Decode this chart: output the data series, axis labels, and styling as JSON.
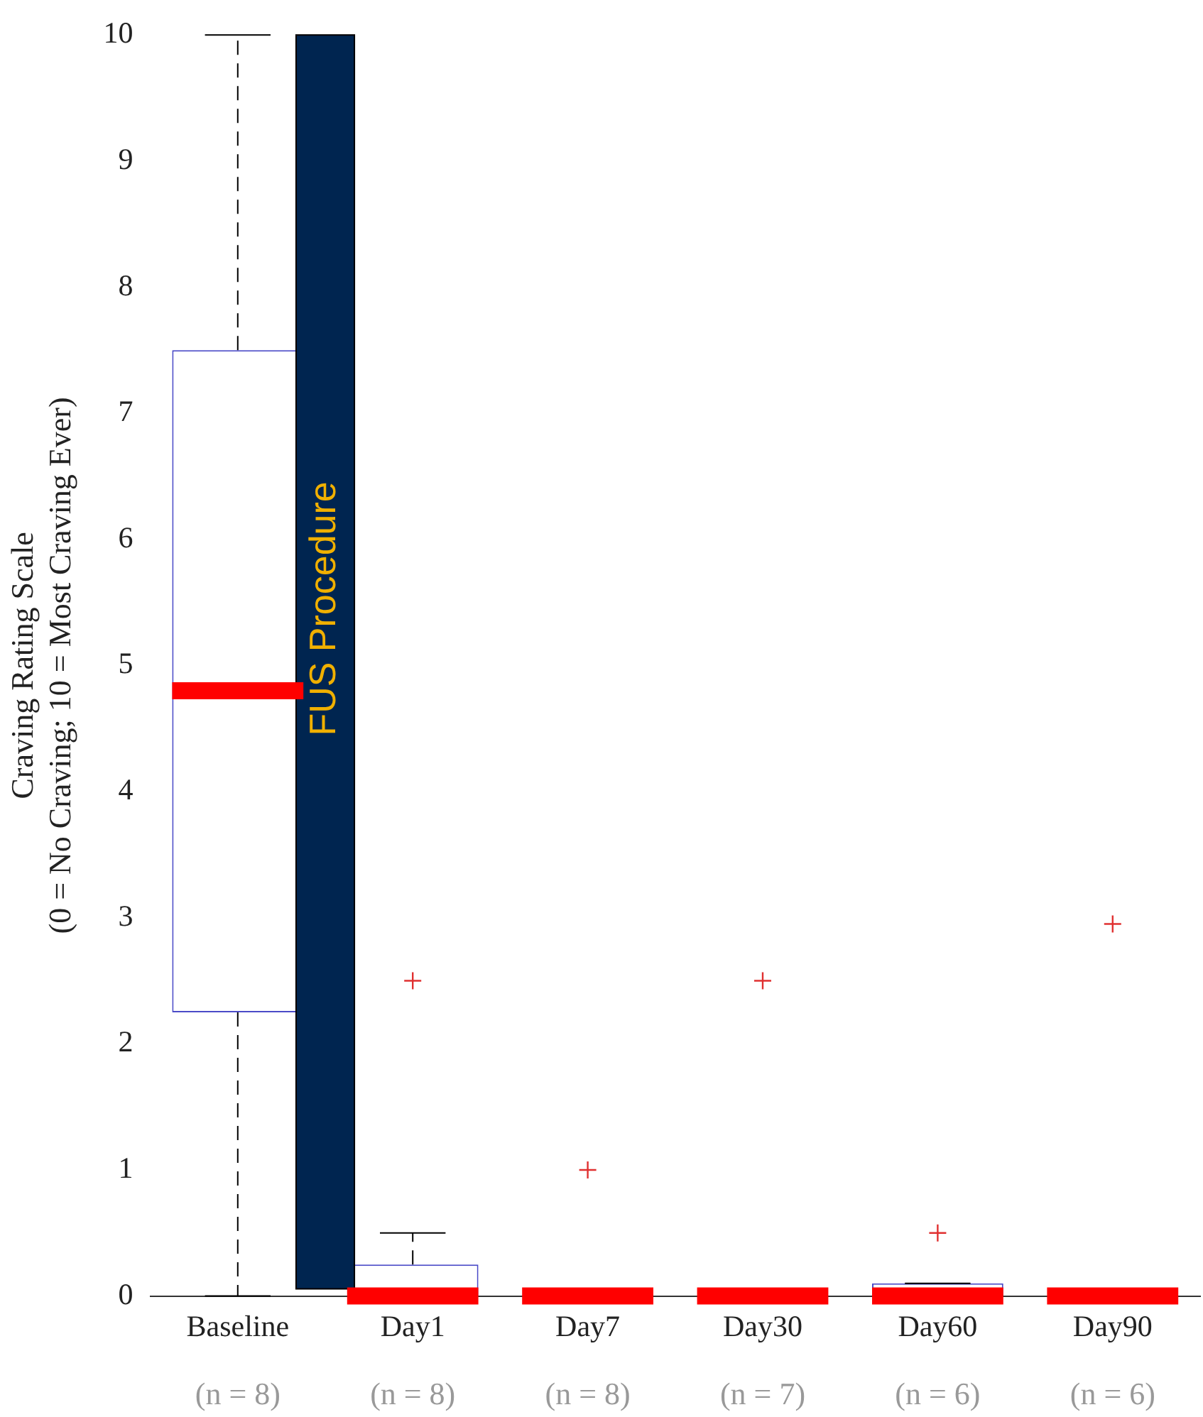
{
  "chart_data": {
    "type": "box",
    "ylabel": "Craving Rating Scale\n(0 = No Craving; 10 = Most Craving Ever)",
    "categories": [
      "Baseline",
      "Day1",
      "Day7",
      "Day30",
      "Day60",
      "Day90"
    ],
    "boxes": [
      {
        "low": 0,
        "q1": 2.25,
        "median": 4.8,
        "q3": 7.5,
        "high": 10
      },
      {
        "low": 0,
        "q1": 0,
        "median": 0,
        "q3": 0.25,
        "high": 0.5,
        "outliers": [
          2.5
        ]
      },
      {
        "low": 0,
        "q1": 0,
        "median": 0,
        "q3": 0,
        "high": 0,
        "outliers": [
          1
        ]
      },
      {
        "low": 0,
        "q1": 0,
        "median": 0,
        "q3": 0,
        "high": 0,
        "outliers": [
          2.5
        ]
      },
      {
        "low": 0,
        "q1": 0,
        "median": 0,
        "q3": 0.1,
        "high": 0.1,
        "outliers": [
          0.5
        ]
      },
      {
        "low": 0,
        "q1": 0,
        "median": 0,
        "q3": 0,
        "high": 0,
        "outliers": [
          2.95
        ]
      }
    ],
    "ylim": [
      0,
      10
    ],
    "yticks": [
      0,
      1,
      2,
      3,
      4,
      5,
      6,
      7,
      8,
      9,
      10
    ],
    "grid": false,
    "legend": false,
    "bands": [
      {
        "axis": "x",
        "from": "Baseline",
        "to": "Day1",
        "label": "FUS Procedure",
        "color": "#002550"
      }
    ],
    "annotations": [
      "(n = 8)",
      "(n = 8)",
      "(n = 8)",
      "(n = 7)",
      "(n = 6)",
      "(n = 6)"
    ]
  }
}
